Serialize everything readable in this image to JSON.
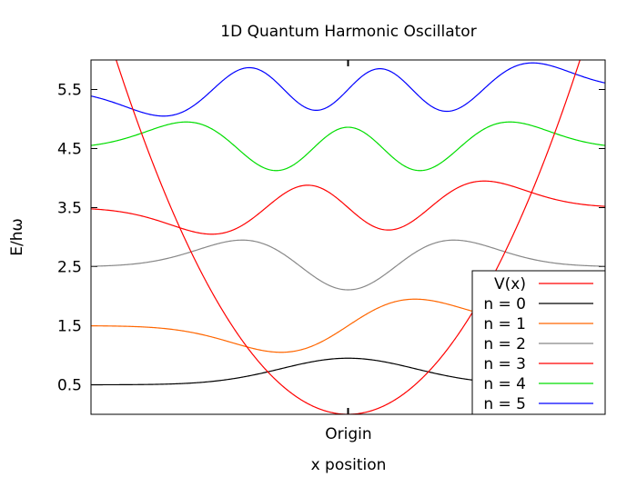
{
  "chart_data": {
    "type": "line",
    "title": "1D Quantum Harmonic Oscillator",
    "xlabel": "x position",
    "ylabel": "E/hω",
    "x_tick_labels": [
      "Origin"
    ],
    "y_ticks": [
      0.5,
      1.5,
      2.5,
      3.5,
      4.5,
      5.5
    ],
    "y_tick_labels": [
      "0.5",
      "1.5",
      "2.5",
      "3.5",
      "4.5",
      "5.5"
    ],
    "xlim": [
      -3.84,
      3.84
    ],
    "ylim": [
      0,
      6
    ],
    "grid": false,
    "legend_position": "bottom-right",
    "potential": {
      "label": "V(x)",
      "color": "#ff0000",
      "formula": "x^2/2"
    },
    "series": [
      {
        "name": "n = 0",
        "n": 0,
        "energy": 0.5,
        "color": "#000000"
      },
      {
        "name": "n = 1",
        "n": 1,
        "energy": 1.5,
        "color": "#ff6600"
      },
      {
        "name": "n = 2",
        "n": 2,
        "energy": 2.5,
        "color": "#888888"
      },
      {
        "name": "n = 3",
        "n": 3,
        "energy": 3.5,
        "color": "#ff0000"
      },
      {
        "name": "n = 4",
        "n": 4,
        "energy": 4.5,
        "color": "#00dd00"
      },
      {
        "name": "n = 5",
        "n": 5,
        "energy": 5.5,
        "color": "#0000ff"
      }
    ]
  }
}
